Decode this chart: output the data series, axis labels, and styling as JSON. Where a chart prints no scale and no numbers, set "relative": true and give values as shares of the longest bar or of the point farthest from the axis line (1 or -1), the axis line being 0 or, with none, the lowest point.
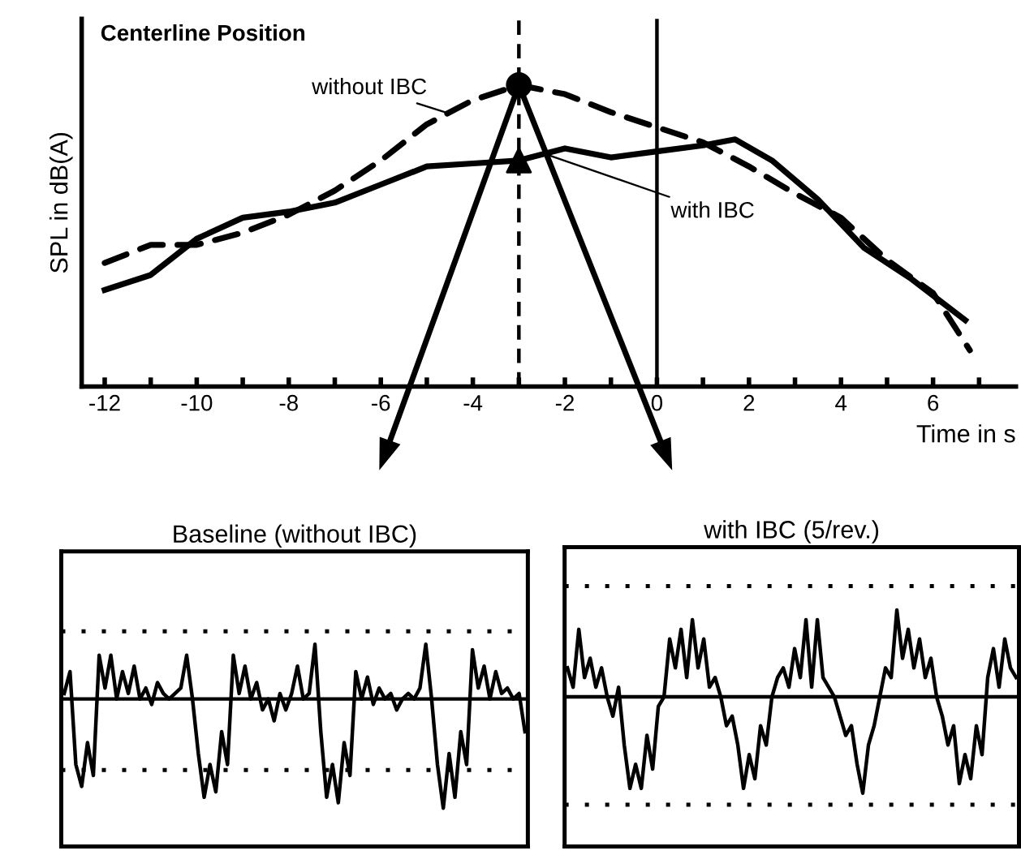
{
  "chart_data": [
    {
      "type": "line",
      "relative": true,
      "title": "Centerline Position",
      "xlabel": "Time in s",
      "ylabel": "SPL in dB(A)",
      "xlim": [
        -12.5,
        7.8
      ],
      "xticks": [
        -12,
        {
          "value": -11,
          "label": null
        },
        -10,
        {
          "value": -9,
          "label": null
        },
        -8,
        {
          "value": -7,
          "label": null
        },
        -6,
        {
          "value": -5,
          "label": null
        },
        -4,
        {
          "value": -3,
          "label": null
        },
        -2,
        {
          "value": -1,
          "label": null
        },
        0,
        {
          "value": 1,
          "label": null
        },
        2,
        {
          "value": 3,
          "label": null
        },
        4,
        {
          "value": 5,
          "label": null
        },
        6,
        {
          "value": 7,
          "label": null
        }
      ],
      "grid": false,
      "legend": false,
      "tick_labels": "x",
      "series": [
        {
          "color": "#000000",
          "line_style": "dashed",
          "marker": "none",
          "x": [
            -12,
            -11,
            -10,
            -9,
            -8,
            -7,
            -6,
            -5,
            -4,
            -3,
            -2,
            -1,
            0,
            1,
            2,
            3,
            4,
            5,
            6,
            6.8
          ],
          "values": [
            0.41,
            0.47,
            0.47,
            0.51,
            0.57,
            0.65,
            0.75,
            0.87,
            0.95,
            1.0,
            0.97,
            0.91,
            0.86,
            0.81,
            0.73,
            0.64,
            0.56,
            0.42,
            0.31,
            0.12
          ]
        },
        {
          "color": "#000000",
          "line_style": "solid",
          "marker": "none",
          "x": [
            -12,
            -11,
            -10,
            -9,
            -8,
            -7,
            -6,
            -5,
            -4,
            -3,
            -2,
            -1,
            0,
            1,
            1.7,
            2.5,
            3.5,
            4.5,
            5.5,
            6.7
          ],
          "values": [
            0.32,
            0.37,
            0.49,
            0.56,
            0.58,
            0.61,
            0.67,
            0.73,
            0.74,
            0.75,
            0.79,
            0.76,
            0.78,
            0.8,
            0.82,
            0.75,
            0.62,
            0.46,
            0.36,
            0.22
          ]
        },
        {
          "type": "scatter",
          "color": "#000000",
          "marker": "circle",
          "x": [
            -3
          ],
          "values": [
            1.0
          ]
        },
        {
          "type": "scatter",
          "color": "#000000",
          "marker": "triangle",
          "x": [
            -3
          ],
          "values": [
            0.75
          ]
        }
      ],
      "ref_lines": [
        {
          "axis": "x",
          "value": 0,
          "line_style": "solid"
        },
        {
          "axis": "x",
          "value": -3,
          "line_style": "dashed"
        }
      ],
      "annotations": [
        {
          "text": "without IBC",
          "x": -4.6,
          "y": 0.91
        },
        {
          "text": "with IBC",
          "x": -2.4,
          "y": 0.77
        }
      ]
    },
    {
      "type": "line",
      "relative": true,
      "title": "Baseline (without IBC)",
      "tick_labels": false,
      "grid": false,
      "legend": false,
      "categories": [
        null,
        null,
        null,
        null,
        null,
        null,
        null,
        null,
        null,
        null,
        null,
        null,
        null,
        null,
        null,
        null,
        null,
        null,
        null,
        null,
        null,
        null,
        null,
        null,
        null,
        null,
        null,
        null,
        null,
        null,
        null,
        null,
        null,
        null,
        null,
        null,
        null,
        null,
        null,
        null,
        null,
        null,
        null,
        null,
        null,
        null,
        null,
        null,
        null,
        null,
        null,
        null,
        null,
        null,
        null,
        null,
        null,
        null,
        null,
        null,
        null,
        null,
        null,
        null,
        null,
        null,
        null,
        null,
        null,
        null,
        null,
        null,
        null,
        null,
        null,
        null,
        null,
        null,
        null,
        null
      ],
      "series": [
        {
          "color": "#000000",
          "values": [
            0.05,
            0.25,
            -0.6,
            -0.8,
            -0.4,
            -0.7,
            0.4,
            0.1,
            0.4,
            0.0,
            0.25,
            0.05,
            0.3,
            0.0,
            0.1,
            -0.05,
            0.15,
            0.05,
            0.0,
            0.05,
            0.1,
            0.4,
            0.0,
            -0.5,
            -0.9,
            -0.6,
            -0.85,
            -0.3,
            -0.6,
            0.4,
            0.05,
            0.3,
            0.0,
            0.15,
            -0.1,
            0.0,
            -0.2,
            0.05,
            -0.1,
            0.05,
            0.3,
            0.0,
            0.05,
            0.5,
            -0.3,
            -0.9,
            -0.6,
            -0.95,
            -0.4,
            -0.7,
            0.25,
            0.0,
            0.2,
            -0.05,
            0.1,
            0.0,
            0.05,
            -0.1,
            0.0,
            0.05,
            0.0,
            0.1,
            0.5,
            0.0,
            -0.6,
            -1.0,
            -0.5,
            -0.9,
            -0.3,
            -0.6,
            0.45,
            0.1,
            0.3,
            0.0,
            0.25,
            0.05,
            0.1,
            0.0,
            0.05,
            -0.3
          ]
        }
      ],
      "ref_lines": [
        {
          "axis": "y",
          "value": 0,
          "line_style": "solid"
        },
        {
          "axis": "y",
          "value": 0.62,
          "line_style": "dotted"
        },
        {
          "axis": "y",
          "value": -0.65,
          "line_style": "dotted"
        }
      ]
    },
    {
      "type": "line",
      "relative": true,
      "title": "with IBC (5/rev.)",
      "tick_labels": false,
      "grid": false,
      "legend": false,
      "categories": [
        null,
        null,
        null,
        null,
        null,
        null,
        null,
        null,
        null,
        null,
        null,
        null,
        null,
        null,
        null,
        null,
        null,
        null,
        null,
        null,
        null,
        null,
        null,
        null,
        null,
        null,
        null,
        null,
        null,
        null,
        null,
        null,
        null,
        null,
        null,
        null,
        null,
        null,
        null,
        null,
        null,
        null,
        null,
        null,
        null,
        null,
        null,
        null,
        null,
        null,
        null,
        null,
        null,
        null,
        null,
        null,
        null,
        null,
        null,
        null,
        null,
        null,
        null,
        null,
        null,
        null,
        null,
        null,
        null,
        null,
        null,
        null,
        null,
        null,
        null,
        null,
        null,
        null,
        null,
        null
      ],
      "series": [
        {
          "color": "#000000",
          "values": [
            0.3,
            0.1,
            0.7,
            0.2,
            0.4,
            0.1,
            0.3,
            0.0,
            -0.2,
            0.1,
            -0.5,
            -0.95,
            -0.7,
            -0.95,
            -0.4,
            -0.75,
            -0.1,
            0.0,
            0.6,
            0.3,
            0.7,
            0.2,
            0.8,
            0.3,
            0.6,
            0.1,
            0.2,
            0.0,
            -0.3,
            -0.2,
            -0.5,
            -0.95,
            -0.6,
            -0.85,
            -0.3,
            -0.5,
            0.0,
            0.2,
            0.3,
            0.1,
            0.5,
            0.2,
            0.8,
            0.1,
            0.8,
            0.2,
            0.1,
            0.0,
            -0.2,
            -0.4,
            -0.3,
            -0.7,
            -1.0,
            -0.5,
            -0.3,
            0.0,
            0.3,
            0.2,
            0.9,
            0.4,
            0.7,
            0.3,
            0.6,
            0.2,
            0.4,
            0.0,
            -0.2,
            -0.5,
            -0.3,
            -0.9,
            -0.6,
            -0.85,
            -0.3,
            -0.6,
            0.2,
            0.5,
            0.1,
            0.6,
            0.3,
            0.2
          ]
        }
      ],
      "ref_lines": [
        {
          "axis": "y",
          "value": 0,
          "line_style": "solid"
        },
        {
          "axis": "y",
          "value": 1.15,
          "line_style": "dotted"
        },
        {
          "axis": "y",
          "value": -1.12,
          "line_style": "dotted"
        }
      ]
    }
  ]
}
